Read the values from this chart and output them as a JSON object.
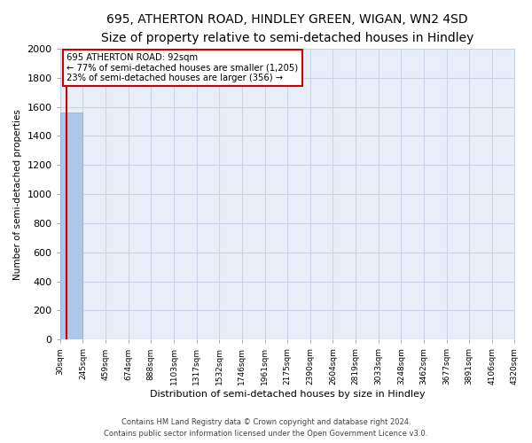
{
  "title1": "695, ATHERTON ROAD, HINDLEY GREEN, WIGAN, WN2 4SD",
  "title2": "Size of property relative to semi-detached houses in Hindley",
  "xlabel": "Distribution of semi-detached houses by size in Hindley",
  "ylabel": "Number of semi-detached properties",
  "footer1": "Contains HM Land Registry data © Crown copyright and database right 2024.",
  "footer2": "Contains public sector information licensed under the Open Government Licence v3.0.",
  "annotation_title": "695 ATHERTON ROAD: 92sqm",
  "annotation_line1": "← 77% of semi-detached houses are smaller (1,205)",
  "annotation_line2": "23% of semi-detached houses are larger (356) →",
  "property_size": 92,
  "bar_edges": [
    30,
    245,
    459,
    674,
    888,
    1103,
    1317,
    1532,
    1746,
    1961,
    2175,
    2390,
    2604,
    2819,
    3033,
    3248,
    3462,
    3677,
    3891,
    4106,
    4320
  ],
  "bar_heights": [
    1561,
    0,
    0,
    0,
    0,
    0,
    0,
    0,
    0,
    0,
    0,
    0,
    0,
    0,
    0,
    0,
    0,
    0,
    0,
    0
  ],
  "bar_color": "#aec6e8",
  "bar_edgecolor": "#7bafd4",
  "vline_color": "#cc0000",
  "annotation_box_color": "#cc0000",
  "grid_color": "#c8d4e8",
  "background_color": "#e8eef8",
  "ylim": [
    0,
    2000
  ],
  "yticks": [
    0,
    200,
    400,
    600,
    800,
    1000,
    1200,
    1400,
    1600,
    1800,
    2000
  ],
  "tick_labels": [
    "30sqm",
    "245sqm",
    "459sqm",
    "674sqm",
    "888sqm",
    "1103sqm",
    "1317sqm",
    "1532sqm",
    "1746sqm",
    "1961sqm",
    "2175sqm",
    "2390sqm",
    "2604sqm",
    "2819sqm",
    "3033sqm",
    "3248sqm",
    "3462sqm",
    "3677sqm",
    "3891sqm",
    "4106sqm",
    "4320sqm"
  ],
  "title1_fontsize": 10,
  "title2_fontsize": 9,
  "xlabel_fontsize": 8,
  "ylabel_fontsize": 7.5,
  "ytick_fontsize": 8,
  "xtick_fontsize": 6.5,
  "footer_fontsize": 6
}
